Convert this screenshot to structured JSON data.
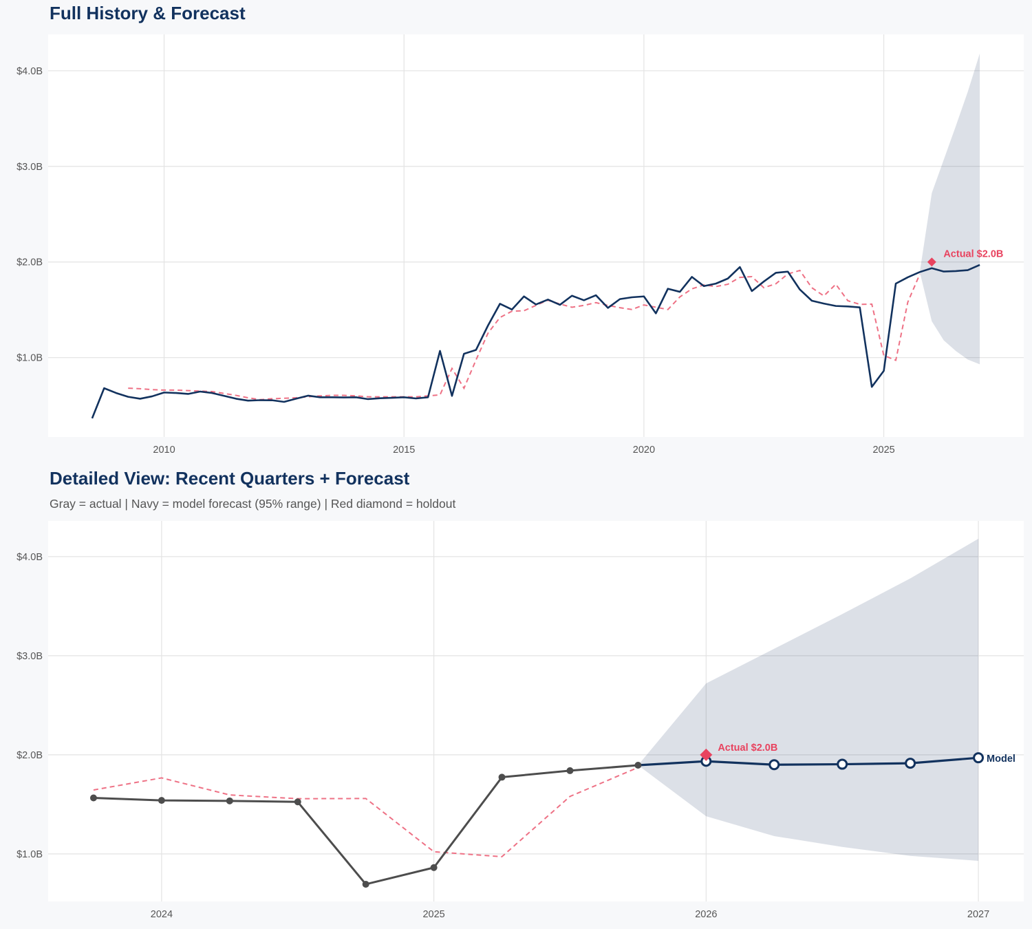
{
  "colors": {
    "background": "#f7f8fa",
    "plot": "#ffffff",
    "grid": "#e3e3e3",
    "navy": "#12325e",
    "fitted": "#ee7185",
    "holdout": "#e8435f",
    "actual_gray": "#4d4d4d",
    "band": "#dadfe5"
  },
  "chart_data": [
    {
      "type": "line",
      "title": "Full History & Forecast",
      "xlim": [
        "2007-08",
        "2027-12"
      ],
      "ylim": [
        0.17,
        4.38
      ],
      "y_unit": "$B",
      "grid": true,
      "x_ticks": [
        {
          "value": "2010-01",
          "label": "2010"
        },
        {
          "value": "2015-01",
          "label": "2015"
        },
        {
          "value": "2020-01",
          "label": "2020"
        },
        {
          "value": "2025-01",
          "label": "2025"
        }
      ],
      "y_ticks": [
        {
          "value": 1,
          "label": "$1.0B"
        },
        {
          "value": 2,
          "label": "$2.0B"
        },
        {
          "value": 3,
          "label": "$3.0B"
        },
        {
          "value": 4,
          "label": "$4.0B"
        }
      ],
      "actual": [
        [
          "2008-07",
          0.365
        ],
        [
          "2008-10",
          0.68
        ],
        [
          "2009-01",
          0.63
        ],
        [
          "2009-04",
          0.59
        ],
        [
          "2009-07",
          0.57
        ],
        [
          "2009-10",
          0.595
        ],
        [
          "2010-01",
          0.635
        ],
        [
          "2010-04",
          0.63
        ],
        [
          "2010-07",
          0.62
        ],
        [
          "2010-10",
          0.645
        ],
        [
          "2011-01",
          0.63
        ],
        [
          "2011-04",
          0.6
        ],
        [
          "2011-07",
          0.57
        ],
        [
          "2011-10",
          0.55
        ],
        [
          "2012-01",
          0.555
        ],
        [
          "2012-04",
          0.554
        ],
        [
          "2012-07",
          0.537
        ],
        [
          "2012-10",
          0.57
        ],
        [
          "2013-01",
          0.602
        ],
        [
          "2013-04",
          0.585
        ],
        [
          "2013-07",
          0.585
        ],
        [
          "2013-10",
          0.583
        ],
        [
          "2014-01",
          0.585
        ],
        [
          "2014-04",
          0.566
        ],
        [
          "2014-07",
          0.575
        ],
        [
          "2014-10",
          0.58
        ],
        [
          "2015-01",
          0.585
        ],
        [
          "2015-04",
          0.573
        ],
        [
          "2015-07",
          0.585
        ],
        [
          "2015-10",
          1.07
        ],
        [
          "2016-01",
          0.6
        ],
        [
          "2016-04",
          1.04
        ],
        [
          "2016-07",
          1.08
        ],
        [
          "2016-10",
          1.335
        ],
        [
          "2017-01",
          1.563
        ],
        [
          "2017-04",
          1.503
        ],
        [
          "2017-07",
          1.64
        ],
        [
          "2017-10",
          1.556
        ],
        [
          "2018-01",
          1.607
        ],
        [
          "2018-04",
          1.552
        ],
        [
          "2018-07",
          1.647
        ],
        [
          "2018-10",
          1.6
        ],
        [
          "2019-01",
          1.652
        ],
        [
          "2019-04",
          1.52
        ],
        [
          "2019-07",
          1.612
        ],
        [
          "2019-10",
          1.631
        ],
        [
          "2020-01",
          1.64
        ],
        [
          "2020-04",
          1.463
        ],
        [
          "2020-07",
          1.72
        ],
        [
          "2020-10",
          1.688
        ],
        [
          "2021-01",
          1.844
        ],
        [
          "2021-04",
          1.748
        ],
        [
          "2021-07",
          1.774
        ],
        [
          "2021-10",
          1.827
        ],
        [
          "2022-01",
          1.947
        ],
        [
          "2022-04",
          1.696
        ],
        [
          "2022-07",
          1.796
        ],
        [
          "2022-10",
          1.887
        ],
        [
          "2023-01",
          1.899
        ],
        [
          "2023-04",
          1.712
        ],
        [
          "2023-07",
          1.595
        ],
        [
          "2023-10",
          1.565
        ],
        [
          "2024-01",
          1.54
        ],
        [
          "2024-04",
          1.535
        ],
        [
          "2024-07",
          1.525
        ],
        [
          "2024-10",
          0.694
        ],
        [
          "2025-01",
          0.862
        ],
        [
          "2025-04",
          1.774
        ],
        [
          "2025-07",
          1.84
        ],
        [
          "2025-10",
          1.895
        ]
      ],
      "fitted": [
        [
          "2009-04",
          0.68
        ],
        [
          "2009-07",
          0.675
        ],
        [
          "2009-10",
          0.665
        ],
        [
          "2010-01",
          0.66
        ],
        [
          "2010-04",
          0.66
        ],
        [
          "2010-07",
          0.655
        ],
        [
          "2010-10",
          0.65
        ],
        [
          "2011-01",
          0.645
        ],
        [
          "2011-04",
          0.625
        ],
        [
          "2011-07",
          0.605
        ],
        [
          "2011-10",
          0.58
        ],
        [
          "2012-01",
          0.56
        ],
        [
          "2012-04",
          0.57
        ],
        [
          "2012-07",
          0.575
        ],
        [
          "2012-10",
          0.58
        ],
        [
          "2013-01",
          0.59
        ],
        [
          "2013-04",
          0.6
        ],
        [
          "2013-07",
          0.605
        ],
        [
          "2013-10",
          0.605
        ],
        [
          "2014-01",
          0.6
        ],
        [
          "2014-04",
          0.59
        ],
        [
          "2014-07",
          0.59
        ],
        [
          "2014-10",
          0.59
        ],
        [
          "2015-01",
          0.59
        ],
        [
          "2015-04",
          0.59
        ],
        [
          "2015-07",
          0.6
        ],
        [
          "2015-10",
          0.61
        ],
        [
          "2016-01",
          0.887
        ],
        [
          "2016-04",
          0.68
        ],
        [
          "2016-07",
          0.975
        ],
        [
          "2016-10",
          1.255
        ],
        [
          "2017-01",
          1.42
        ],
        [
          "2017-04",
          1.485
        ],
        [
          "2017-07",
          1.49
        ],
        [
          "2017-10",
          1.546
        ],
        [
          "2018-01",
          1.6
        ],
        [
          "2018-04",
          1.56
        ],
        [
          "2018-07",
          1.527
        ],
        [
          "2018-10",
          1.546
        ],
        [
          "2019-01",
          1.575
        ],
        [
          "2019-04",
          1.546
        ],
        [
          "2019-07",
          1.522
        ],
        [
          "2019-10",
          1.503
        ],
        [
          "2020-01",
          1.551
        ],
        [
          "2020-04",
          1.527
        ],
        [
          "2020-07",
          1.503
        ],
        [
          "2020-10",
          1.635
        ],
        [
          "2021-01",
          1.719
        ],
        [
          "2021-04",
          1.76
        ],
        [
          "2021-07",
          1.743
        ],
        [
          "2021-10",
          1.767
        ],
        [
          "2022-01",
          1.839
        ],
        [
          "2022-04",
          1.847
        ],
        [
          "2022-07",
          1.731
        ],
        [
          "2022-10",
          1.772
        ],
        [
          "2023-01",
          1.875
        ],
        [
          "2023-04",
          1.911
        ],
        [
          "2023-07",
          1.731
        ],
        [
          "2023-10",
          1.645
        ],
        [
          "2024-01",
          1.767
        ],
        [
          "2024-04",
          1.595
        ],
        [
          "2024-07",
          1.557
        ],
        [
          "2024-10",
          1.559
        ],
        [
          "2025-01",
          1.022
        ],
        [
          "2025-04",
          0.972
        ],
        [
          "2025-07",
          1.58
        ],
        [
          "2025-10",
          1.872
        ]
      ],
      "forecast": [
        [
          "2025-10",
          1.895
        ],
        [
          "2026-01",
          1.935
        ],
        [
          "2026-04",
          1.9
        ],
        [
          "2026-07",
          1.905
        ],
        [
          "2026-10",
          1.915
        ],
        [
          "2027-01",
          1.97
        ]
      ],
      "band_95": [
        [
          "2025-10",
          1.895,
          1.895
        ],
        [
          "2026-01",
          1.38,
          2.72
        ],
        [
          "2026-04",
          1.18,
          3.07
        ],
        [
          "2026-07",
          1.07,
          3.42
        ],
        [
          "2026-10",
          0.98,
          3.78
        ],
        [
          "2027-01",
          0.93,
          4.18
        ]
      ],
      "holdout": {
        "x": "2026-01",
        "y": 2.0,
        "label": "Actual $2.0B"
      }
    },
    {
      "type": "line",
      "title": "Detailed View: Recent Quarters + Forecast",
      "subtitle": "Gray = actual  |  Navy = model forecast (95% range)  |  Red diamond = holdout",
      "xlim": [
        "2023-08",
        "2027-03"
      ],
      "ylim": [
        0.52,
        4.36
      ],
      "y_unit": "$B",
      "grid": true,
      "x_ticks": [
        {
          "value": "2024-01",
          "label": "2024"
        },
        {
          "value": "2025-01",
          "label": "2025"
        },
        {
          "value": "2026-01",
          "label": "2026"
        },
        {
          "value": "2027-01",
          "label": "2027"
        }
      ],
      "y_ticks": [
        {
          "value": 1,
          "label": "$1.0B"
        },
        {
          "value": 2,
          "label": "$2.0B"
        },
        {
          "value": 3,
          "label": "$3.0B"
        },
        {
          "value": 4,
          "label": "$4.0B"
        }
      ],
      "actual": [
        [
          "2023-10",
          1.565
        ],
        [
          "2024-01",
          1.54
        ],
        [
          "2024-04",
          1.535
        ],
        [
          "2024-07",
          1.525
        ],
        [
          "2024-10",
          0.694
        ],
        [
          "2025-01",
          0.862
        ],
        [
          "2025-04",
          1.774
        ],
        [
          "2025-07",
          1.84
        ],
        [
          "2025-10",
          1.895
        ]
      ],
      "fitted": [
        [
          "2023-10",
          1.645
        ],
        [
          "2024-01",
          1.767
        ],
        [
          "2024-04",
          1.595
        ],
        [
          "2024-07",
          1.557
        ],
        [
          "2024-10",
          1.559
        ],
        [
          "2025-01",
          1.022
        ],
        [
          "2025-04",
          0.972
        ],
        [
          "2025-07",
          1.58
        ],
        [
          "2025-10",
          1.872
        ]
      ],
      "forecast": [
        [
          "2025-10",
          1.895
        ],
        [
          "2026-01",
          1.935
        ],
        [
          "2026-04",
          1.9
        ],
        [
          "2026-07",
          1.905
        ],
        [
          "2026-10",
          1.915
        ],
        [
          "2027-01",
          1.97
        ]
      ],
      "forecast_label": "Model",
      "band_95": [
        [
          "2025-10",
          1.895,
          1.895
        ],
        [
          "2026-01",
          1.38,
          2.72
        ],
        [
          "2026-04",
          1.18,
          3.07
        ],
        [
          "2026-07",
          1.07,
          3.42
        ],
        [
          "2026-10",
          0.98,
          3.78
        ],
        [
          "2027-01",
          0.93,
          4.18
        ]
      ],
      "holdout": {
        "x": "2026-01",
        "y": 2.0,
        "label": "Actual $2.0B"
      }
    }
  ]
}
